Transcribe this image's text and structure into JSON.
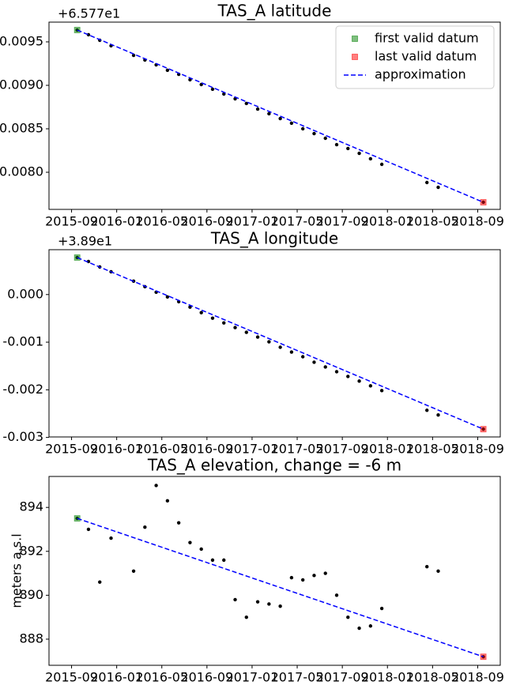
{
  "chart_data": [
    {
      "type": "scatter",
      "title": "TAS_A latitude",
      "offset_text": "+6.577e1",
      "xlim": [
        "2015-07",
        "2018-11"
      ],
      "xticks": [
        "2015-09",
        "2016-01",
        "2016-05",
        "2016-09",
        "2017-01",
        "2017-05",
        "2017-09",
        "2018-01",
        "2018-05",
        "2018-09"
      ],
      "ylim": [
        0.007573,
        0.009727
      ],
      "yticks": [
        {
          "value": 0.008,
          "label": "0.0080"
        },
        {
          "value": 0.0085,
          "label": "0.0085"
        },
        {
          "value": 0.009,
          "label": "0.0090"
        },
        {
          "value": 0.0095,
          "label": "0.0095"
        }
      ],
      "legend": "upper right",
      "series": [
        {
          "style": "dot",
          "color": "#000000",
          "x": [
            "2015-09",
            "2015-10",
            "2015-11",
            "2015-12",
            "2016-02",
            "2016-03",
            "2016-04",
            "2016-05",
            "2016-06",
            "2016-07",
            "2016-08",
            "2016-09",
            "2016-10",
            "2016-11",
            "2016-12",
            "2017-01",
            "2017-02",
            "2017-03",
            "2017-04",
            "2017-05",
            "2017-06",
            "2017-07",
            "2017-08",
            "2017-09",
            "2017-10",
            "2017-11",
            "2017-12",
            "2018-04",
            "2018-05",
            "2018-09"
          ],
          "values": [
            0.009636,
            0.009582,
            0.009518,
            0.009455,
            0.009345,
            0.009291,
            0.009236,
            0.009173,
            0.009127,
            0.009064,
            0.009009,
            0.008955,
            0.0089,
            0.008845,
            0.008791,
            0.008727,
            0.008673,
            0.008618,
            0.008564,
            0.0085,
            0.008445,
            0.008391,
            0.008318,
            0.008273,
            0.008218,
            0.008155,
            0.008091,
            0.007882,
            0.007827,
            0.007655
          ]
        },
        {
          "name": "first valid datum",
          "style": "square",
          "color": "#008000",
          "x": [
            "2015-09"
          ],
          "values": [
            0.009636
          ]
        },
        {
          "name": "last valid datum",
          "style": "square",
          "color": "#ff0000",
          "x": [
            "2018-09"
          ],
          "values": [
            0.007655
          ]
        },
        {
          "name": "approximation",
          "style": "dashed-line",
          "color": "#0000ff",
          "x": [
            "2015-09",
            "2018-09"
          ],
          "values": [
            0.009636,
            0.007655
          ]
        }
      ]
    },
    {
      "type": "scatter",
      "title": "TAS_A longitude",
      "offset_text": "+3.89e1",
      "xlim": [
        "2015-07",
        "2018-11"
      ],
      "xticks": [
        "2015-09",
        "2016-01",
        "2016-05",
        "2016-09",
        "2017-01",
        "2017-05",
        "2017-09",
        "2018-01",
        "2018-05",
        "2018-09"
      ],
      "ylim": [
        -0.00299,
        0.000942
      ],
      "yticks": [
        {
          "value": -0.003,
          "label": "-0.003"
        },
        {
          "value": -0.002,
          "label": "-0.002"
        },
        {
          "value": -0.001,
          "label": "-0.001"
        },
        {
          "value": 0,
          "label": "0.000"
        }
      ],
      "series": [
        {
          "style": "dot",
          "color": "#000000",
          "x": [
            "2015-09",
            "2015-10",
            "2015-11",
            "2015-12",
            "2016-02",
            "2016-03",
            "2016-04",
            "2016-05",
            "2016-06",
            "2016-07",
            "2016-08",
            "2016-09",
            "2016-10",
            "2016-11",
            "2016-12",
            "2017-01",
            "2017-02",
            "2017-03",
            "2017-04",
            "2017-05",
            "2017-06",
            "2017-07",
            "2017-08",
            "2017-09",
            "2017-10",
            "2017-11",
            "2017-12",
            "2018-04",
            "2018-05",
            "2018-09"
          ],
          "values": [
            0.000777,
            0.000694,
            0.000579,
            0.000479,
            0.000281,
            0.000165,
            5e-05,
            -5e-05,
            -0.000149,
            -0.000264,
            -0.00038,
            -0.000496,
            -0.000595,
            -0.000694,
            -0.000793,
            -0.000893,
            -0.000992,
            -0.001107,
            -0.001207,
            -0.001306,
            -0.001421,
            -0.001521,
            -0.00162,
            -0.001719,
            -0.001818,
            -0.001917,
            -0.002017,
            -0.00243,
            -0.002529,
            -0.002826
          ]
        },
        {
          "style": "square",
          "color": "#008000",
          "x": [
            "2015-09"
          ],
          "values": [
            0.000777
          ]
        },
        {
          "style": "square",
          "color": "#ff0000",
          "x": [
            "2018-09"
          ],
          "values": [
            -0.002826
          ]
        },
        {
          "style": "dashed-line",
          "color": "#0000ff",
          "x": [
            "2015-09",
            "2018-09"
          ],
          "values": [
            0.000777,
            -0.002826
          ]
        }
      ]
    },
    {
      "type": "scatter",
      "title": "TAS_A elevation, change = -6 m",
      "y_label": "meters a.s.l",
      "xlim": [
        "2015-07",
        "2018-11"
      ],
      "xticks": [
        "2015-09",
        "2016-01",
        "2016-05",
        "2016-09",
        "2017-01",
        "2017-05",
        "2017-09",
        "2018-01",
        "2018-05",
        "2018-09"
      ],
      "ylim": [
        886.81,
        895.41
      ],
      "yticks": [
        888,
        890,
        892,
        894
      ],
      "series": [
        {
          "style": "dot",
          "color": "#000000",
          "x": [
            "2015-09",
            "2015-10",
            "2015-11",
            "2015-12",
            "2016-02",
            "2016-03",
            "2016-04",
            "2016-05",
            "2016-06",
            "2016-07",
            "2016-08",
            "2016-09",
            "2016-10",
            "2016-11",
            "2016-12",
            "2017-01",
            "2017-02",
            "2017-03",
            "2017-04",
            "2017-05",
            "2017-06",
            "2017-07",
            "2017-08",
            "2017-09",
            "2017-10",
            "2017-11",
            "2017-12",
            "2018-04",
            "2018-05",
            "2018-09"
          ],
          "values": [
            893.5,
            893.0,
            890.6,
            892.6,
            891.1,
            893.1,
            895.0,
            894.3,
            893.3,
            892.4,
            892.1,
            891.6,
            891.6,
            889.8,
            889.0,
            889.7,
            889.6,
            889.5,
            890.8,
            890.7,
            890.9,
            891.0,
            890.0,
            889.0,
            888.5,
            888.6,
            889.4,
            891.3,
            891.1,
            887.2
          ]
        },
        {
          "style": "square",
          "color": "#008000",
          "x": [
            "2015-09"
          ],
          "values": [
            893.5
          ]
        },
        {
          "style": "square",
          "color": "#ff0000",
          "x": [
            "2018-09"
          ],
          "values": [
            887.2
          ]
        },
        {
          "style": "dashed-line",
          "color": "#0000ff",
          "x": [
            "2015-09",
            "2018-09"
          ],
          "values": [
            893.5,
            887.2
          ]
        }
      ]
    }
  ]
}
